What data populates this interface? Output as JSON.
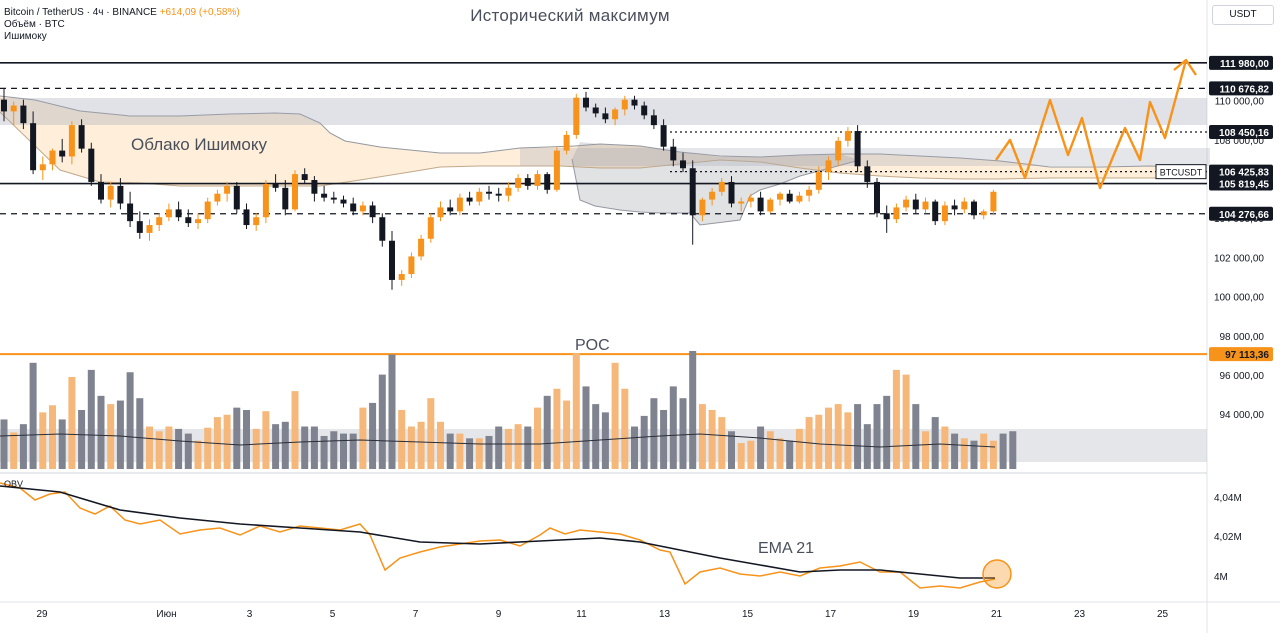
{
  "header": {
    "symbol": "Bitcoin / TetherUS · 4ч · BINANCE",
    "change": "+614,09 (+0,58%)",
    "volume_label": "Объём · BTC",
    "indicator": "Ишимоку"
  },
  "currency_button": "USDT",
  "chart_data": {
    "type": "candlestick",
    "title": "Исторический максимум",
    "annotations": {
      "cloud": "Облако Ишимоку",
      "poc": "POC",
      "ema": "EMA 21",
      "obv": "OBV"
    },
    "price_axis": {
      "ylim": [
        91200,
        113400
      ],
      "ticks": [
        {
          "value": 110000,
          "label": "110 000,00"
        },
        {
          "value": 108000,
          "label": "108 000,00"
        },
        {
          "value": 104000,
          "label": "104 000,00"
        },
        {
          "value": 102000,
          "label": "102 000,00"
        },
        {
          "value": 100000,
          "label": "100 000,00"
        },
        {
          "value": 98000,
          "label": "98 000,00"
        },
        {
          "value": 96000,
          "label": "96 000,00"
        },
        {
          "value": 94000,
          "label": "94 000,00"
        }
      ]
    },
    "obv_axis": {
      "ticks": [
        {
          "label": "4,04M",
          "value": 4.04
        },
        {
          "label": "4,02M",
          "value": 4.02
        },
        {
          "label": "4M",
          "value": 4.0
        }
      ]
    },
    "price_levels": [
      {
        "value": 111980,
        "label": "111 980,00",
        "style": "solid",
        "color": "#131722"
      },
      {
        "value": 110676.82,
        "label": "110 676,82",
        "style": "dashed",
        "color": "#131722"
      },
      {
        "value": 108450.16,
        "label": "108 450,16",
        "style": "dotted",
        "color": "#131722"
      },
      {
        "value": 106425.83,
        "label": "106 425,83",
        "style": "dotted",
        "color": "#131722"
      },
      {
        "value": 105819.45,
        "label": "105 819,45",
        "style": "solid",
        "color": "#131722"
      },
      {
        "value": 104276.66,
        "label": "104 276,66",
        "style": "dashed",
        "color": "#131722"
      },
      {
        "value": 97113.36,
        "label": "97 113,36",
        "style": "solid",
        "color": "#f7931a"
      }
    ],
    "last_price_tag": "BTCUSDT",
    "x_axis": {
      "labels": [
        "29",
        "Июн",
        "3",
        "5",
        "7",
        "9",
        "11",
        "13",
        "15",
        "17",
        "19",
        "21",
        "23",
        "25"
      ],
      "day_index": [
        0,
        3,
        5,
        7,
        9,
        11,
        13,
        15,
        17,
        19,
        21,
        23,
        25,
        27
      ]
    },
    "candles": [
      [
        110100,
        110700,
        109000,
        109500
      ],
      [
        109500,
        110000,
        108800,
        109800
      ],
      [
        109800,
        110100,
        108600,
        108900
      ],
      [
        108900,
        109500,
        106300,
        106500
      ],
      [
        106500,
        107200,
        106000,
        106800
      ],
      [
        106800,
        107600,
        106500,
        107500
      ],
      [
        107500,
        108100,
        106900,
        107200
      ],
      [
        107200,
        109000,
        106800,
        108800
      ],
      [
        108800,
        109100,
        107400,
        107600
      ],
      [
        107600,
        107900,
        105700,
        105900
      ],
      [
        105900,
        106300,
        104800,
        105000
      ],
      [
        105000,
        105900,
        104600,
        105700
      ],
      [
        105700,
        106100,
        104500,
        104800
      ],
      [
        104800,
        105400,
        103600,
        103900
      ],
      [
        103900,
        104400,
        103000,
        103300
      ],
      [
        103300,
        104000,
        102900,
        103700
      ],
      [
        103700,
        104300,
        103400,
        104100
      ],
      [
        104100,
        104800,
        103900,
        104500
      ],
      [
        104500,
        104900,
        103900,
        104100
      ],
      [
        104100,
        104500,
        103600,
        103800
      ],
      [
        103800,
        104300,
        103500,
        104000
      ],
      [
        104000,
        105100,
        103800,
        104900
      ],
      [
        104900,
        105500,
        104700,
        105300
      ],
      [
        105300,
        105900,
        104900,
        105700
      ],
      [
        105700,
        105900,
        104300,
        104500
      ],
      [
        104500,
        104800,
        103500,
        103700
      ],
      [
        103700,
        104300,
        103400,
        104100
      ],
      [
        104100,
        106000,
        103800,
        105800
      ],
      [
        105800,
        106300,
        105400,
        105600
      ],
      [
        105600,
        106000,
        104200,
        104500
      ],
      [
        104500,
        106500,
        104400,
        106300
      ],
      [
        106300,
        106600,
        105800,
        106000
      ],
      [
        106000,
        106200,
        104900,
        105300
      ],
      [
        105300,
        105700,
        104900,
        105100
      ],
      [
        105100,
        105400,
        104800,
        105000
      ],
      [
        105000,
        105200,
        104600,
        104800
      ],
      [
        104800,
        105100,
        104200,
        104400
      ],
      [
        104400,
        104900,
        104200,
        104700
      ],
      [
        104700,
        104900,
        103800,
        104100
      ],
      [
        104100,
        104300,
        102600,
        102900
      ],
      [
        102900,
        103400,
        100400,
        100900
      ],
      [
        100900,
        101400,
        100600,
        101200
      ],
      [
        101200,
        102300,
        101000,
        102100
      ],
      [
        102100,
        103200,
        101900,
        103000
      ],
      [
        103000,
        104300,
        102800,
        104100
      ],
      [
        104100,
        104900,
        103900,
        104600
      ],
      [
        104600,
        105000,
        104200,
        104400
      ],
      [
        104400,
        105300,
        104200,
        105100
      ],
      [
        105100,
        105400,
        104700,
        104900
      ],
      [
        104900,
        105600,
        104700,
        105400
      ],
      [
        105400,
        105700,
        105000,
        105300
      ],
      [
        105300,
        105600,
        104900,
        105200
      ],
      [
        105200,
        105900,
        104900,
        105600
      ],
      [
        105600,
        106300,
        105400,
        106100
      ],
      [
        106100,
        106300,
        105500,
        105700
      ],
      [
        105700,
        106500,
        105500,
        106300
      ],
      [
        106300,
        106400,
        105300,
        105500
      ],
      [
        105500,
        107700,
        105400,
        107500
      ],
      [
        107500,
        108500,
        107300,
        108300
      ],
      [
        108300,
        110400,
        108100,
        110200
      ],
      [
        110200,
        110500,
        109500,
        109700
      ],
      [
        109700,
        109900,
        109200,
        109400
      ],
      [
        109400,
        109700,
        108900,
        109100
      ],
      [
        109100,
        109700,
        108800,
        109600
      ],
      [
        109600,
        110300,
        109300,
        110100
      ],
      [
        110100,
        110300,
        109600,
        109800
      ],
      [
        109800,
        110000,
        109100,
        109300
      ],
      [
        109300,
        109600,
        108600,
        108800
      ],
      [
        108800,
        109100,
        107500,
        107700
      ],
      [
        107700,
        108100,
        106700,
        107000
      ],
      [
        107000,
        107400,
        106400,
        106600
      ],
      [
        106600,
        107000,
        102700,
        104200
      ],
      [
        104200,
        105100,
        103900,
        105000
      ],
      [
        105000,
        105600,
        104700,
        105400
      ],
      [
        105400,
        106100,
        105200,
        105900
      ],
      [
        105900,
        106200,
        104600,
        104800
      ],
      [
        104800,
        105100,
        104400,
        104900
      ],
      [
        104900,
        105300,
        104600,
        105100
      ],
      [
        105100,
        105400,
        104200,
        104400
      ],
      [
        104400,
        105100,
        104300,
        105000
      ],
      [
        105000,
        105400,
        104700,
        105300
      ],
      [
        105300,
        105500,
        104800,
        104900
      ],
      [
        104900,
        105400,
        104800,
        105200
      ],
      [
        105200,
        105700,
        104900,
        105500
      ],
      [
        105500,
        106700,
        105300,
        106400
      ],
      [
        106400,
        107200,
        106000,
        107000
      ],
      [
        107000,
        108200,
        106700,
        108000
      ],
      [
        108000,
        108700,
        107700,
        108500
      ],
      [
        108500,
        108800,
        106400,
        106700
      ],
      [
        106700,
        107000,
        105600,
        105900
      ],
      [
        105900,
        106100,
        104100,
        104300
      ],
      [
        104300,
        104700,
        103300,
        104000
      ],
      [
        104000,
        104800,
        103800,
        104600
      ],
      [
        104600,
        105200,
        104400,
        105000
      ],
      [
        105000,
        105300,
        104300,
        104500
      ],
      [
        104500,
        105100,
        104300,
        104900
      ],
      [
        104900,
        105000,
        103700,
        103900
      ],
      [
        103900,
        104900,
        103700,
        104700
      ],
      [
        104700,
        105000,
        104200,
        104500
      ],
      [
        104500,
        105100,
        104300,
        104900
      ],
      [
        104900,
        105000,
        104000,
        104200
      ],
      [
        104200,
        104500,
        104000,
        104400
      ],
      [
        104400,
        105500,
        104200,
        105400
      ]
    ],
    "volume": [
      0.42,
      0.31,
      0.38,
      0.9,
      0.48,
      0.54,
      0.42,
      0.78,
      0.5,
      0.84,
      0.62,
      0.55,
      0.58,
      0.82,
      0.6,
      0.36,
      0.32,
      0.36,
      0.34,
      0.3,
      0.24,
      0.35,
      0.44,
      0.46,
      0.52,
      0.5,
      0.34,
      0.49,
      0.38,
      0.4,
      0.66,
      0.36,
      0.36,
      0.28,
      0.32,
      0.3,
      0.3,
      0.52,
      0.56,
      0.8,
      0.97,
      0.5,
      0.36,
      0.4,
      0.6,
      0.4,
      0.3,
      0.3,
      0.26,
      0.26,
      0.28,
      0.36,
      0.34,
      0.38,
      0.36,
      0.52,
      0.62,
      0.68,
      0.58,
      0.98,
      0.7,
      0.55,
      0.48,
      0.9,
      0.68,
      0.36,
      0.45,
      0.6,
      0.5,
      0.7,
      0.6,
      1.0,
      0.55,
      0.5,
      0.44,
      0.32,
      0.22,
      0.24,
      0.36,
      0.32,
      0.26,
      0.24,
      0.34,
      0.44,
      0.46,
      0.52,
      0.55,
      0.48,
      0.55,
      0.38,
      0.55,
      0.62,
      0.84,
      0.8,
      0.55,
      0.32,
      0.44,
      0.36,
      0.3,
      0.26,
      0.24,
      0.3,
      0.24,
      0.3,
      0.32
    ]
  }
}
